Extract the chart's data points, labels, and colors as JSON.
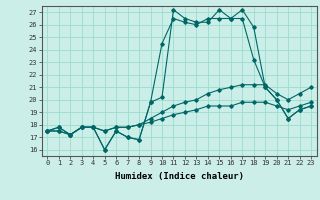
{
  "xlabel": "Humidex (Indice chaleur)",
  "bg_color": "#cceee8",
  "grid_color": "#99ddcc",
  "line_color": "#006666",
  "xlim": [
    -0.5,
    23.5
  ],
  "ylim": [
    15.5,
    27.5
  ],
  "xticks": [
    0,
    1,
    2,
    3,
    4,
    5,
    6,
    7,
    8,
    9,
    10,
    11,
    12,
    13,
    14,
    15,
    16,
    17,
    18,
    19,
    20,
    21,
    22,
    23
  ],
  "yticks": [
    16,
    17,
    18,
    19,
    20,
    21,
    22,
    23,
    24,
    25,
    26,
    27
  ],
  "series": [
    [
      17.5,
      17.8,
      17.2,
      17.8,
      17.8,
      16.0,
      17.5,
      17.0,
      16.8,
      19.8,
      20.2,
      27.2,
      26.5,
      26.2,
      26.2,
      27.2,
      26.5,
      27.2,
      25.8,
      21.0,
      20.0,
      18.5,
      19.2,
      19.5
    ],
    [
      17.5,
      17.8,
      17.2,
      17.8,
      17.8,
      16.0,
      17.5,
      17.0,
      16.8,
      19.8,
      24.5,
      26.5,
      26.2,
      26.0,
      26.5,
      26.5,
      26.5,
      26.5,
      23.2,
      21.0,
      20.0,
      18.5,
      19.2,
      19.5
    ],
    [
      17.5,
      17.5,
      17.2,
      17.8,
      17.8,
      17.5,
      17.8,
      17.8,
      18.0,
      18.5,
      19.0,
      19.5,
      19.8,
      20.0,
      20.5,
      20.8,
      21.0,
      21.2,
      21.2,
      21.2,
      20.5,
      20.0,
      20.5,
      21.0
    ],
    [
      17.5,
      17.5,
      17.2,
      17.8,
      17.8,
      17.5,
      17.8,
      17.8,
      18.0,
      18.2,
      18.5,
      18.8,
      19.0,
      19.2,
      19.5,
      19.5,
      19.5,
      19.8,
      19.8,
      19.8,
      19.5,
      19.2,
      19.5,
      19.8
    ]
  ]
}
